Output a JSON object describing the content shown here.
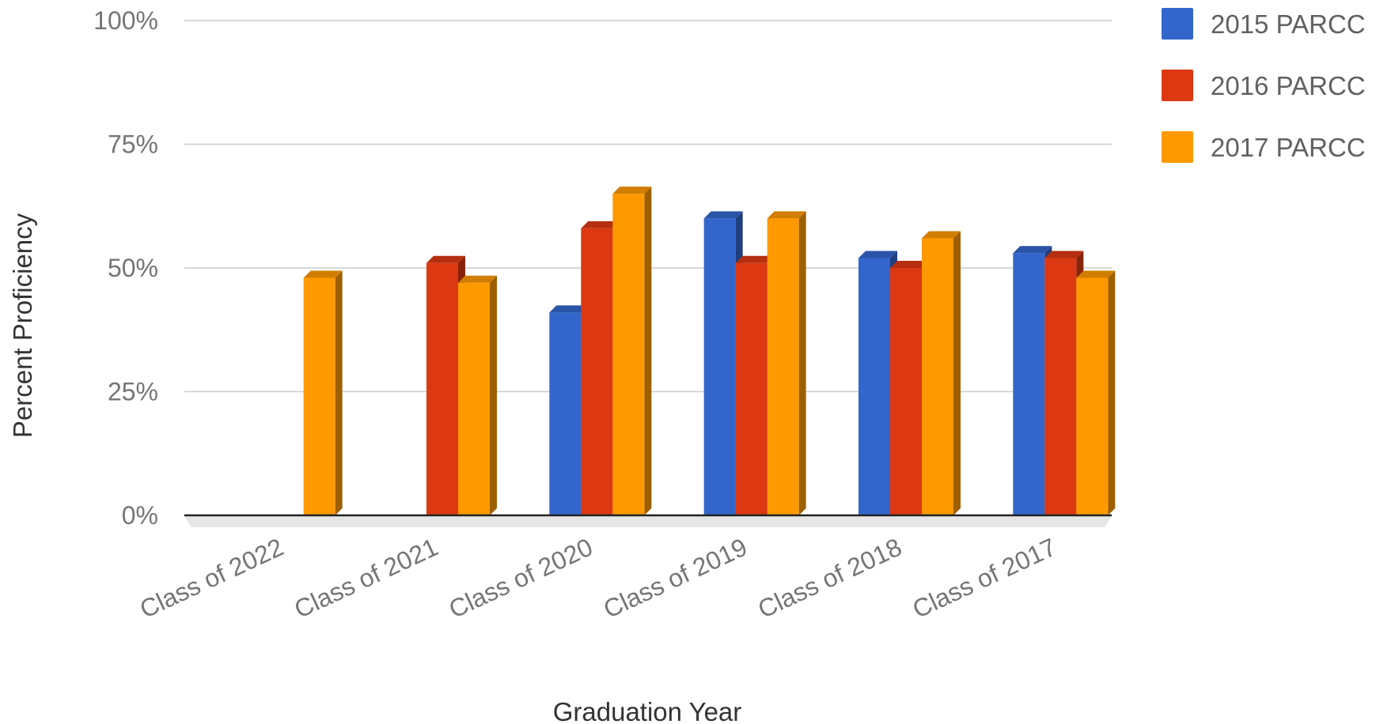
{
  "chart_data": {
    "type": "bar",
    "xlabel": "Graduation Year",
    "ylabel": "Percent Proficiency",
    "ylim": [
      0,
      100
    ],
    "yticks": [
      0,
      25,
      50,
      75,
      100
    ],
    "ytick_labels": [
      "0%",
      "25%",
      "50%",
      "75%",
      "100%"
    ],
    "grid": true,
    "legend": "right",
    "categories": [
      "Class of 2022",
      "Class of 2021",
      "Class of 2020",
      "Class of 2019",
      "Class of 2018",
      "Class of 2017"
    ],
    "series": [
      {
        "name": "2015 PARCC",
        "color": "#3366cc",
        "values": [
          null,
          null,
          41,
          60,
          52,
          53
        ]
      },
      {
        "name": "2016 PARCC",
        "color": "#dc3912",
        "values": [
          null,
          51,
          58,
          51,
          50,
          52
        ]
      },
      {
        "name": "2017 PARCC",
        "color": "#ff9900",
        "values": [
          48,
          47,
          65,
          60,
          56,
          48
        ]
      }
    ]
  }
}
